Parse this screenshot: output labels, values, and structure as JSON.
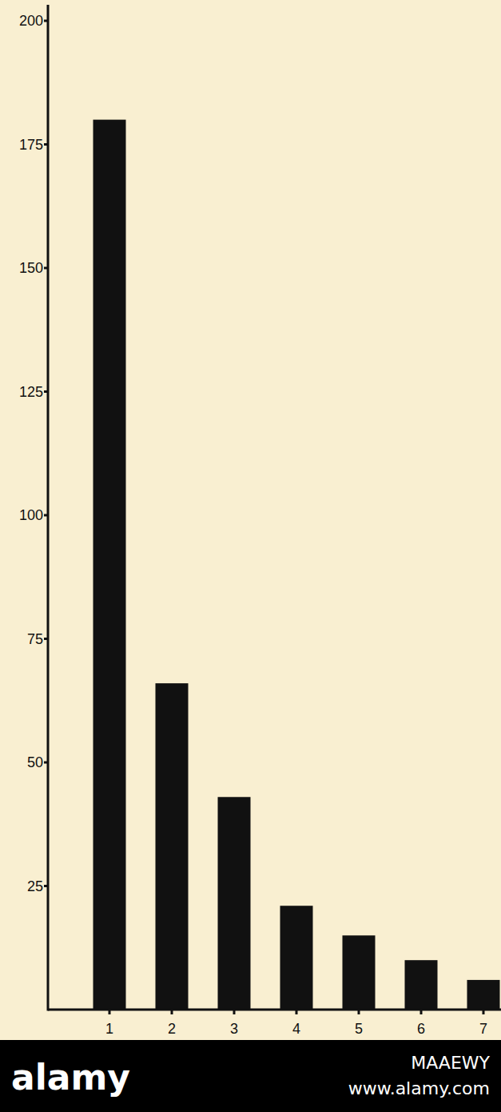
{
  "chart_data": {
    "type": "bar",
    "categories": [
      "1",
      "2",
      "3",
      "4",
      "5",
      "6",
      "7"
    ],
    "values": [
      180,
      66,
      43,
      21,
      15,
      10,
      6
    ],
    "color": "#111111",
    "ylim": [
      0,
      200
    ],
    "yticks": [
      25,
      50,
      75,
      100,
      125,
      150,
      175,
      200
    ],
    "grid": false,
    "annotations": [
      "alamy",
      "MAAEWY",
      "www.alamy.com"
    ]
  }
}
